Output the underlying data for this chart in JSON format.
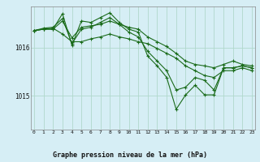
{
  "title": "Graphe pression niveau de la mer (hPa)",
  "bg_color": "#d6eef5",
  "grid_color": "#b0d8cc",
  "line_color": "#1a6b1a",
  "ylim": [
    1014.3,
    1016.85
  ],
  "xlim": [
    -0.3,
    23.3
  ],
  "yticks": [
    1015,
    1016
  ],
  "xticks": [
    0,
    1,
    2,
    3,
    4,
    5,
    6,
    7,
    8,
    9,
    10,
    11,
    12,
    13,
    14,
    15,
    16,
    17,
    18,
    19,
    20,
    21,
    22,
    23
  ],
  "series": [
    [
      1016.35,
      1016.38,
      1016.38,
      1016.55,
      1016.2,
      1016.42,
      1016.45,
      1016.48,
      1016.55,
      1016.48,
      1016.42,
      1016.38,
      1016.22,
      1016.12,
      1016.02,
      1015.88,
      1015.72,
      1015.65,
      1015.62,
      1015.58,
      1015.65,
      1015.72,
      1015.65,
      1015.62
    ],
    [
      1016.35,
      1016.38,
      1016.38,
      1016.7,
      1016.05,
      1016.55,
      1016.52,
      1016.62,
      1016.72,
      1016.52,
      1016.38,
      1016.32,
      1015.82,
      1015.62,
      1015.38,
      1014.72,
      1015.02,
      1015.22,
      1015.02,
      1015.02,
      1015.58,
      1015.58,
      1015.62,
      1015.58
    ],
    [
      1016.35,
      1016.4,
      1016.42,
      1016.6,
      1016.08,
      1016.38,
      1016.42,
      1016.52,
      1016.62,
      1016.48,
      1016.32,
      1016.22,
      1015.92,
      1015.72,
      1015.52,
      1015.12,
      1015.18,
      1015.38,
      1015.32,
      1015.12,
      1015.58,
      1015.58,
      1015.62,
      1015.58
    ],
    [
      1016.35,
      1016.38,
      1016.4,
      1016.28,
      1016.12,
      1016.12,
      1016.18,
      1016.22,
      1016.28,
      1016.22,
      1016.18,
      1016.12,
      1016.08,
      1015.98,
      1015.88,
      1015.78,
      1015.62,
      1015.52,
      1015.42,
      1015.38,
      1015.52,
      1015.52,
      1015.58,
      1015.52
    ]
  ]
}
